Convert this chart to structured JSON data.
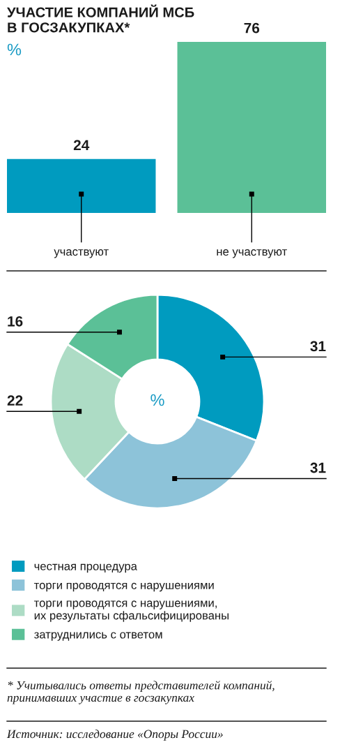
{
  "chart_data": [
    {
      "type": "bar",
      "title": "УЧАСТИЕ КОМПАНИЙ МСБ\nВ ГОСЗАКУПКАХ*",
      "subtitle": "%",
      "categories": [
        "участвуют",
        "не участвуют"
      ],
      "values": [
        24,
        76
      ],
      "colors": [
        "#009bbf",
        "#5bc097"
      ],
      "data_labels": true
    },
    {
      "type": "donut",
      "subtitle": "%",
      "categories": [
        "честная процедура",
        "торги проводятся с нарушениями",
        "торги проводятся с нарушениями,\nих результаты сфальсифицированы",
        "затруднились с ответом"
      ],
      "values": [
        31,
        31,
        22,
        16
      ],
      "colors": [
        "#009bbf",
        "#8dc3d9",
        "#addcc5",
        "#5bc097"
      ],
      "data_labels": true,
      "legend": "bottom",
      "annotations": [
        "* Учитывались ответы представителей компаний,\nпринимавших участие в госзакупках",
        "Источник: исследование «Опоры России»"
      ]
    }
  ]
}
